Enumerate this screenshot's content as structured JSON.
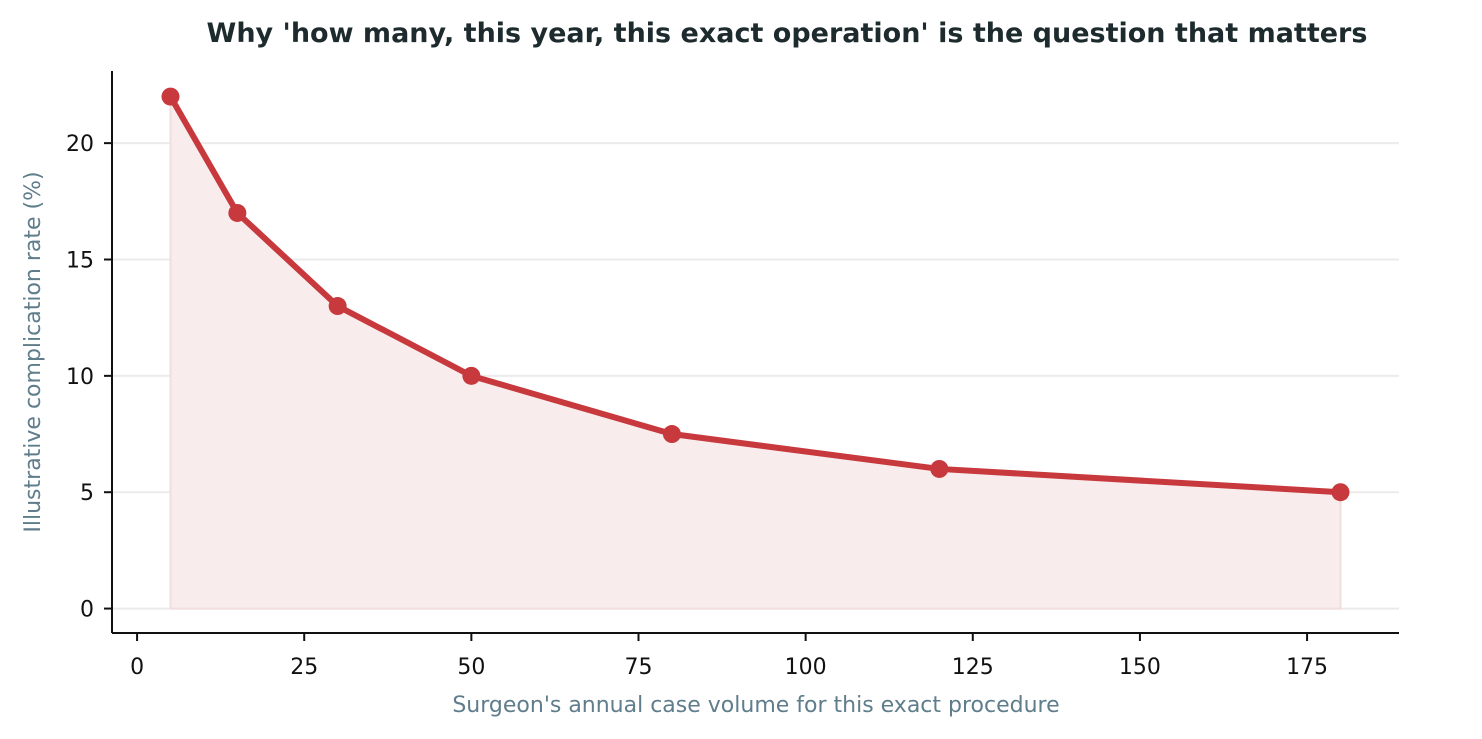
{
  "chart_data": {
    "type": "line",
    "title": "Why 'how many, this year, this exact operation' is the question that matters",
    "xlabel": "Surgeon's annual case volume for this exact procedure",
    "ylabel": "Illustrative complication rate (%)",
    "x": [
      5,
      15,
      30,
      50,
      80,
      120,
      180
    ],
    "series": [
      {
        "values": [
          22,
          17,
          13,
          10,
          7.5,
          6,
          5
        ]
      }
    ],
    "xlim": [
      -3.75,
      188.75
    ],
    "ylim": [
      -1.05,
      23.1
    ],
    "xticks": [
      0,
      25,
      50,
      75,
      100,
      125,
      150,
      175
    ],
    "yticks": [
      0,
      5,
      10,
      15,
      20
    ],
    "xtick_labels": [
      "0",
      "25",
      "50",
      "75",
      "100",
      "125",
      "150",
      "175"
    ],
    "ytick_labels": [
      "0",
      "5",
      "10",
      "15",
      "20"
    ],
    "grid": "y-axis horizontal lines",
    "filled_area": true,
    "markers": true,
    "colors": {
      "line": "#c7393d",
      "fill": "#f9ecec",
      "grid": "#ebebeb",
      "axis": "#111111",
      "label": "#5f7d8b",
      "title": "#1e2b2e"
    }
  }
}
